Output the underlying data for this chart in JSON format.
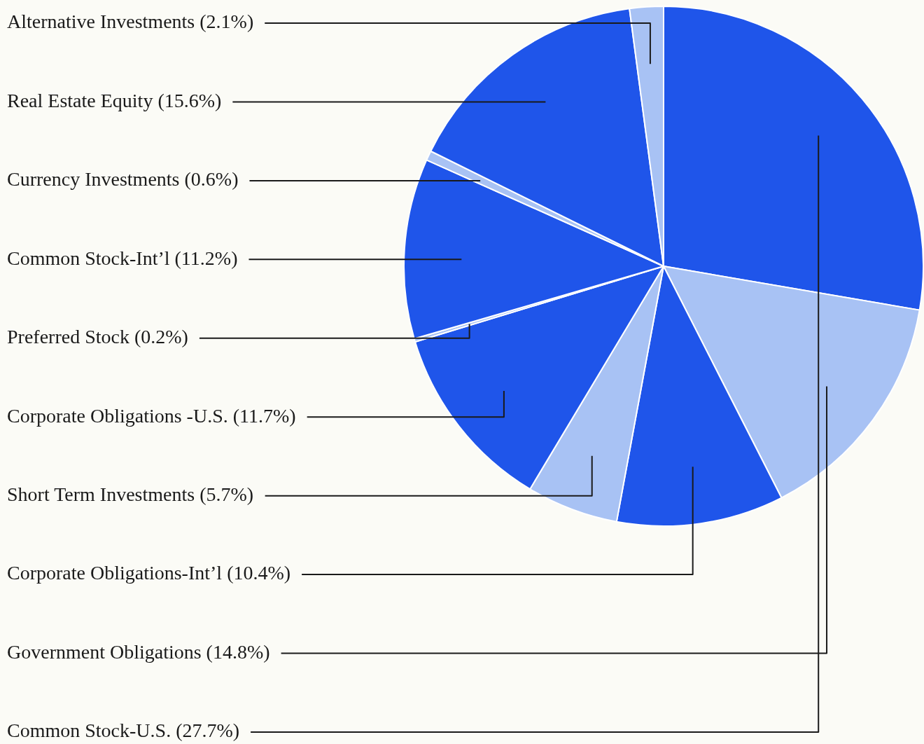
{
  "chart_data": {
    "type": "pie",
    "categories": [
      "Common Stock-U.S. (27.7%)",
      "Government Obligations (14.8%)",
      "Corporate Obligations-Int’l (10.4%)",
      "Short Term Investments (5.7%)",
      "Corporate Obligations -U.S. (11.7%)",
      "Preferred Stock (0.2%)",
      "Common Stock-Int’l (11.2%)",
      "Currency Investments (0.6%)",
      "Real Estate Equity (15.6%)",
      "Alternative Investments (2.1%)"
    ],
    "values": [
      27.7,
      14.8,
      10.4,
      5.7,
      11.7,
      0.2,
      11.2,
      0.6,
      15.6,
      2.1
    ],
    "colors": [
      "#1f55ea",
      "#a8c2f4",
      "#1f55ea",
      "#a8c2f4",
      "#1f55ea",
      "#a8c2f4",
      "#1f55ea",
      "#a8c2f4",
      "#1f55ea",
      "#a8c2f4"
    ],
    "legend": false
  }
}
